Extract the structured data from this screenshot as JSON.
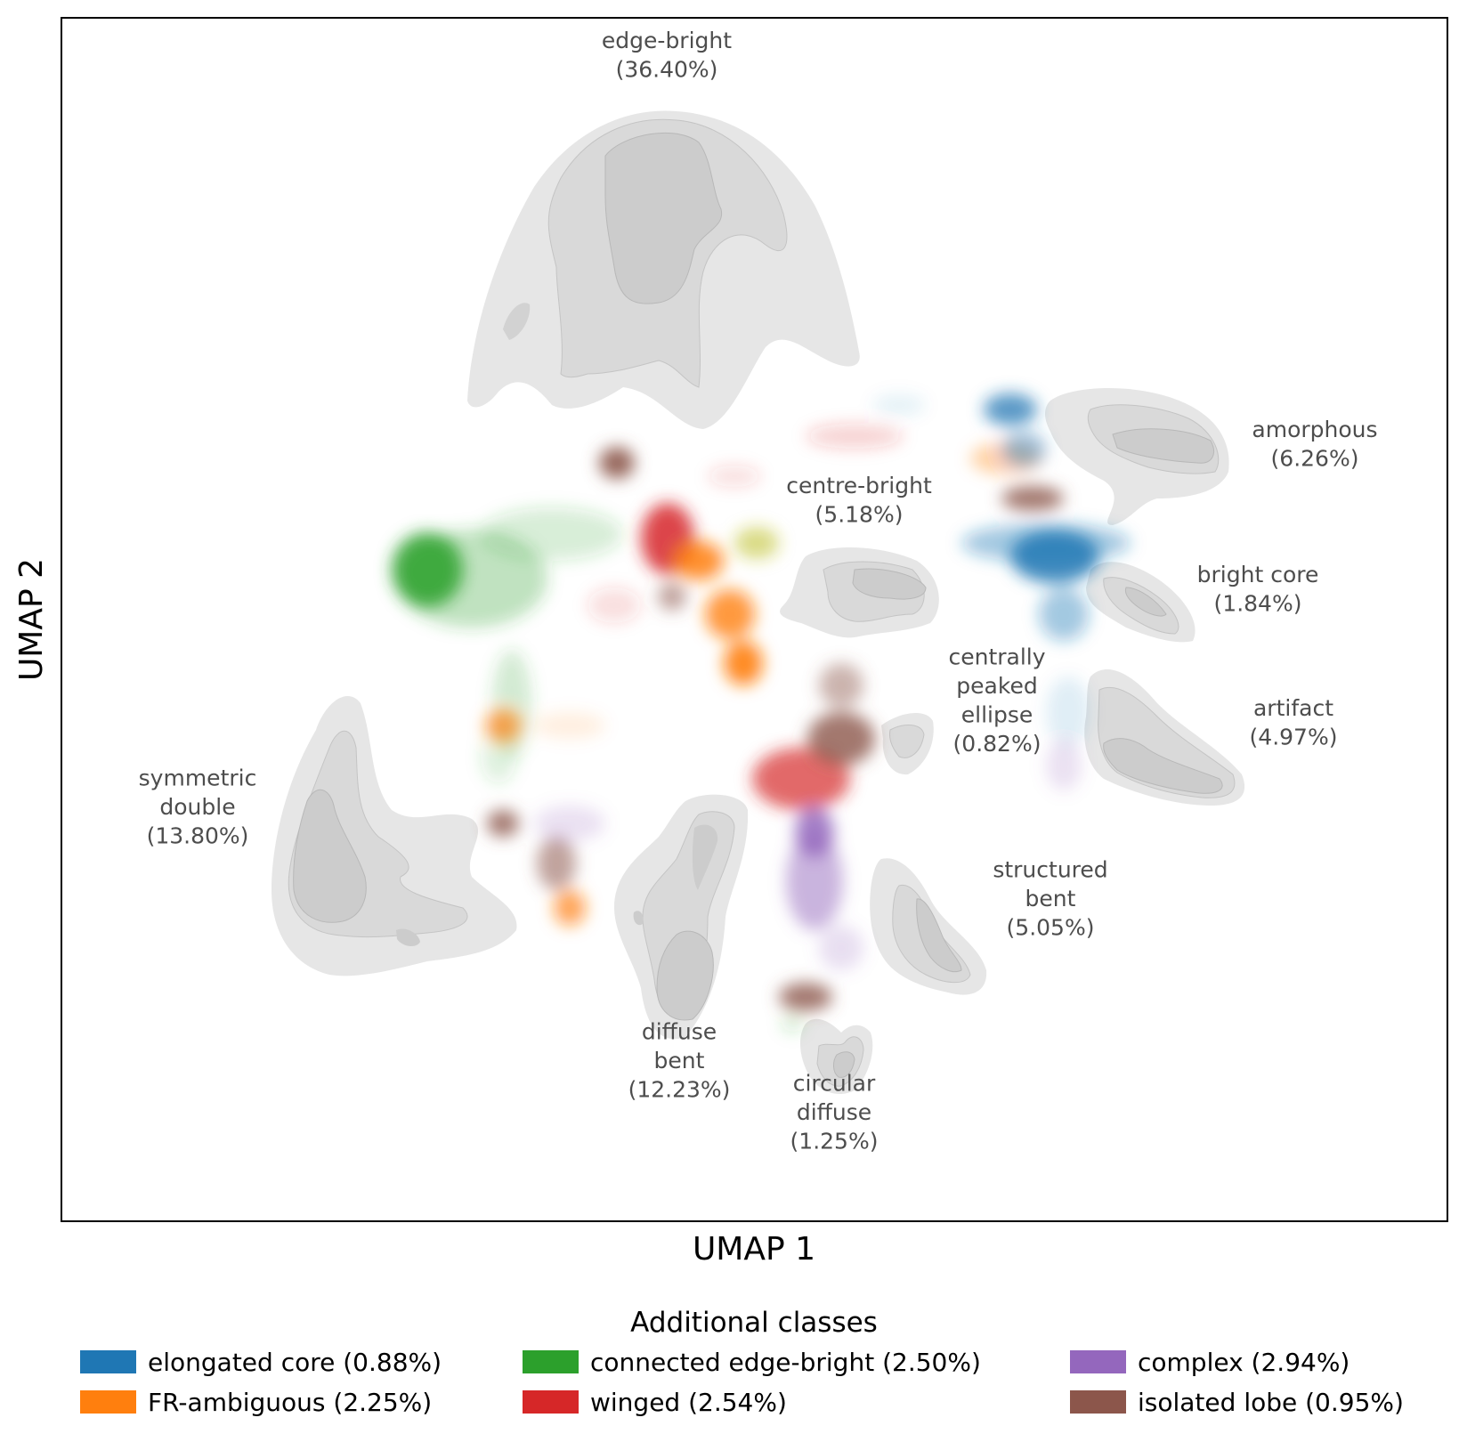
{
  "chart_data": {
    "type": "scatter",
    "xlabel": "UMAP 1",
    "ylabel": "UMAP 2",
    "grid": false,
    "ticks": false,
    "clusters": [
      {
        "id": "edge-bright",
        "lines": [
          "edge-bright",
          "(36.40%)"
        ],
        "fraction": 36.4
      },
      {
        "id": "amorphous",
        "lines": [
          "amorphous",
          "(6.26%)"
        ],
        "fraction": 6.26
      },
      {
        "id": "centre-bright",
        "lines": [
          "centre-bright",
          "(5.18%)"
        ],
        "fraction": 5.18
      },
      {
        "id": "bright-core",
        "lines": [
          "bright core",
          "(1.84%)"
        ],
        "fraction": 1.84
      },
      {
        "id": "centrally-peaked-ellipse",
        "lines": [
          "centrally",
          "peaked",
          "ellipse",
          "(0.82%)"
        ],
        "fraction": 0.82
      },
      {
        "id": "artifact",
        "lines": [
          "artifact",
          "(4.97%)"
        ],
        "fraction": 4.97
      },
      {
        "id": "symmetric-double",
        "lines": [
          "symmetric",
          "double",
          "(13.80%)"
        ],
        "fraction": 13.8
      },
      {
        "id": "structured-bent",
        "lines": [
          "structured",
          "bent",
          "(5.05%)"
        ],
        "fraction": 5.05
      },
      {
        "id": "diffuse-bent",
        "lines": [
          "diffuse",
          "bent",
          "(12.23%)"
        ],
        "fraction": 12.23
      },
      {
        "id": "circular-diffuse",
        "lines": [
          "circular",
          "diffuse",
          "(1.25%)"
        ],
        "fraction": 1.25
      }
    ],
    "legend": {
      "title": "Additional classes",
      "placement": "bottom",
      "items": [
        {
          "label": "elongated core (0.88%)",
          "color": "#1f77b4"
        },
        {
          "label": "FR-ambiguous (2.25%)",
          "color": "#ff7f0e"
        },
        {
          "label": "connected edge-bright (2.50%)",
          "color": "#2ca02c"
        },
        {
          "label": "winged (2.54%)",
          "color": "#d62728"
        },
        {
          "label": "complex (2.94%)",
          "color": "#9467bd"
        },
        {
          "label": "isolated lobe (0.95%)",
          "color": "#8c564b"
        }
      ]
    }
  }
}
